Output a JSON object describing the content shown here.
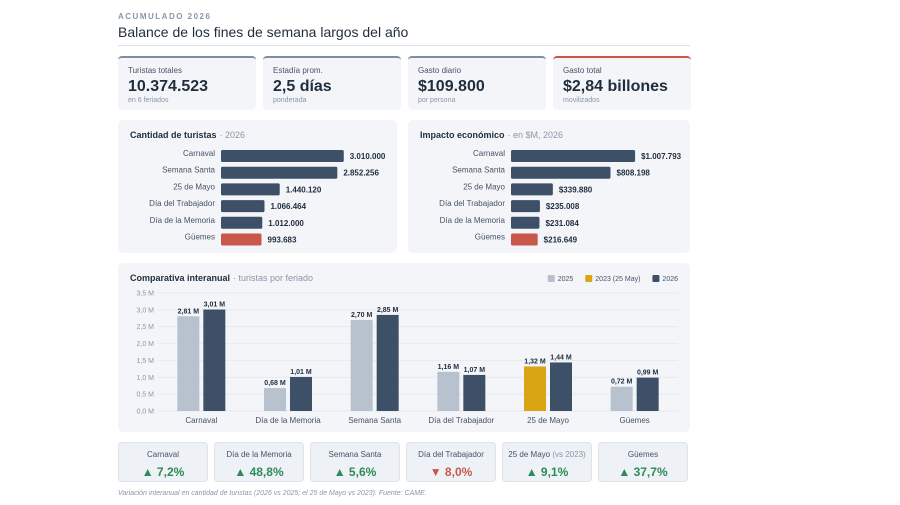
{
  "header": {
    "eyebrow": "ACUMULADO 2026",
    "title": "Balance de los fines de semana largos del año"
  },
  "kpis": [
    {
      "label": "Turistas totales",
      "value": "10.374.523",
      "note": "en 6 feriados",
      "color": "#7d8ea3"
    },
    {
      "label": "Estadía prom.",
      "value": "2,5 días",
      "note": "ponderada",
      "color": "#7d8ea3"
    },
    {
      "label": "Gasto diario",
      "value": "$109.800",
      "note": "por persona",
      "color": "#7d8ea3"
    },
    {
      "label": "Gasto total",
      "value": "$2,84 billones",
      "note": "movilizados",
      "color": "#c9584b"
    }
  ],
  "chart_data": [
    {
      "type": "hbar",
      "title": "Cantidad de turistas",
      "subtitle": "· 2026",
      "categories": [
        "Carnaval",
        "Semana Santa",
        "25 de Mayo",
        "Día del Trabajador",
        "Día de la Memoria",
        "Güemes"
      ],
      "values": [
        3010000,
        2852256,
        1440120,
        1066464,
        1012000,
        993683
      ],
      "value_labels": [
        "3.010.000",
        "2.852.256",
        "1.440.120",
        "1.066.464",
        "1.012.000",
        "993.683"
      ],
      "colors": [
        "#3d5068",
        "#3d5068",
        "#3d5068",
        "#3d5068",
        "#3d5068",
        "#c9584b"
      ]
    },
    {
      "type": "hbar",
      "title": "Impacto económico",
      "subtitle": "· en $M, 2026",
      "categories": [
        "Carnaval",
        "Semana Santa",
        "25 de Mayo",
        "Día del Trabajador",
        "Día de la Memoria",
        "Güemes"
      ],
      "values": [
        1007793,
        808198,
        339880,
        235008,
        231084,
        216649
      ],
      "value_labels": [
        "$1.007.793",
        "$808.198",
        "$339.880",
        "$235.008",
        "$231.084",
        "$216.649"
      ],
      "colors": [
        "#3d5068",
        "#3d5068",
        "#3d5068",
        "#3d5068",
        "#3d5068",
        "#c9584b"
      ]
    },
    {
      "type": "grouped_bar",
      "title": "Comparativa interanual",
      "subtitle": "· turistas por feriado",
      "categories": [
        "Carnaval",
        "Día de la Memoria",
        "Semana Santa",
        "Día del Trabajador",
        "25 de Mayo",
        "Güemes"
      ],
      "series": [
        {
          "name": "2025",
          "color": "#b8c2cf",
          "values": [
            2.81,
            0.68,
            2.7,
            1.16,
            null,
            0.72
          ],
          "value_labels": [
            "2,81 M",
            "0,68 M",
            "2,70 M",
            "1,16 M",
            null,
            "0,72 M"
          ]
        },
        {
          "name": "2023 (25 May)",
          "color": "#d9a514",
          "values": [
            null,
            null,
            null,
            null,
            1.32,
            null
          ],
          "value_labels": [
            null,
            null,
            null,
            null,
            "1,32 M",
            null
          ]
        },
        {
          "name": "2026",
          "color": "#3d5068",
          "values": [
            3.01,
            1.01,
            2.85,
            1.07,
            1.44,
            0.99
          ],
          "value_labels": [
            "3,01 M",
            "1,01 M",
            "2,85 M",
            "1,07 M",
            "1,44 M",
            "0,99 M"
          ]
        }
      ],
      "ylim": [
        0,
        3.5
      ],
      "yticks": [
        {
          "value": 0,
          "label": "0,0 M"
        },
        {
          "value": 0.5,
          "label": "0,5 M"
        },
        {
          "value": 1,
          "label": "1,0 M"
        },
        {
          "value": 1.5,
          "label": "1,5 M"
        },
        {
          "value": 2,
          "label": "2,0 M"
        },
        {
          "value": 2.5,
          "label": "2,5 M"
        },
        {
          "value": 3,
          "label": "3,0 M"
        },
        {
          "value": 3.5,
          "label": "3,5 M"
        }
      ],
      "grid": true,
      "legend": "top-right"
    }
  ],
  "changes": [
    {
      "label": "Carnaval",
      "value": "▲ 7,2%",
      "color": "#2e8b57"
    },
    {
      "label": "Día de la Memoria",
      "value": "▲ 48,8%",
      "color": "#2e8b57"
    },
    {
      "label": "Semana Santa",
      "value": "▲ 5,6%",
      "color": "#2e8b57"
    },
    {
      "label": "Día del Trabajador",
      "value": "▼ 8,0%",
      "color": "#c9584b"
    },
    {
      "label": "25 de Mayo",
      "note": "(vs 2023)",
      "value": "▲ 9,1%",
      "color": "#2e8b57"
    },
    {
      "label": "Güemes",
      "value": "▲ 37,7%",
      "color": "#2e8b57"
    }
  ],
  "footnote": "Variación interanual en cantidad de turistas (2026 vs 2025; el 25 de Mayo vs 2023). Fuente: CAME."
}
